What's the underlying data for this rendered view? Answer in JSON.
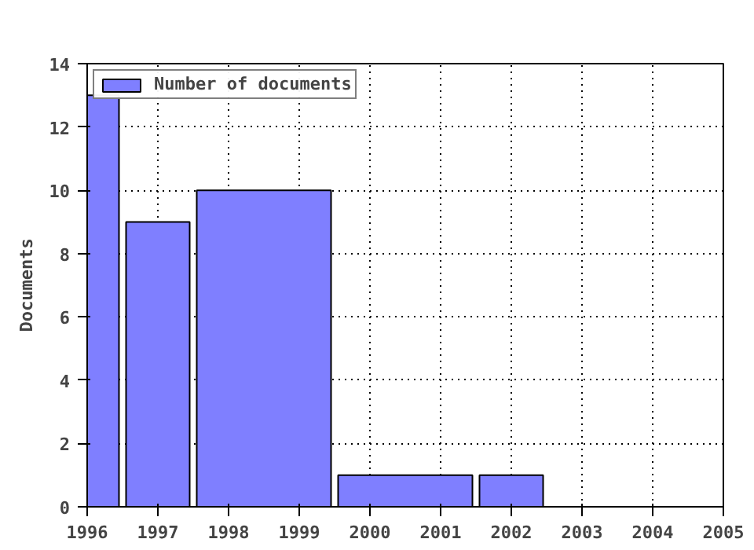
{
  "chart_data": {
    "type": "histogram",
    "ylabel": "Documents",
    "bins": [
      1996,
      1996.5,
      1997.5,
      1999.5,
      2001.5,
      2002.5
    ],
    "series": [
      {
        "name": "Number of documents",
        "color": "#7f7fff",
        "values": [
          13,
          9,
          10,
          1,
          1
        ]
      }
    ],
    "xlim": [
      1996,
      2005
    ],
    "xticks": [
      1996,
      1997,
      1998,
      1999,
      2000,
      2001,
      2002,
      2003,
      2004,
      2005
    ],
    "ylim": [
      0,
      14
    ],
    "yticks": [
      0,
      2,
      4,
      6,
      8,
      10,
      12,
      14
    ],
    "grid": true,
    "legend": "top left"
  }
}
